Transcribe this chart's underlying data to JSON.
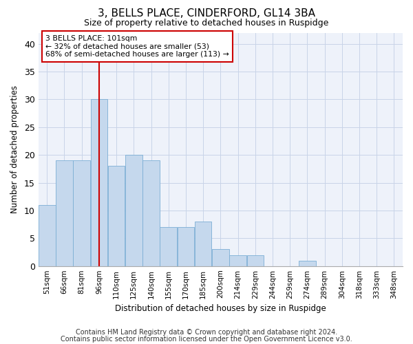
{
  "title": "3, BELLS PLACE, CINDERFORD, GL14 3BA",
  "subtitle": "Size of property relative to detached houses in Ruspidge",
  "xlabel": "Distribution of detached houses by size in Ruspidge",
  "ylabel": "Number of detached properties",
  "bar_labels": [
    "51sqm",
    "66sqm",
    "81sqm",
    "96sqm",
    "110sqm",
    "125sqm",
    "140sqm",
    "155sqm",
    "170sqm",
    "185sqm",
    "200sqm",
    "214sqm",
    "229sqm",
    "244sqm",
    "259sqm",
    "274sqm",
    "289sqm",
    "304sqm",
    "318sqm",
    "333sqm",
    "348sqm"
  ],
  "bar_values": [
    11,
    19,
    19,
    30,
    18,
    20,
    19,
    7,
    7,
    8,
    3,
    2,
    2,
    0,
    0,
    1,
    0,
    0,
    0,
    0,
    0
  ],
  "bar_color": "#c5d8ed",
  "bar_edge_color": "#7baed4",
  "vline_color": "#cc0000",
  "annotation_box_text": "3 BELLS PLACE: 101sqm\n← 32% of detached houses are smaller (53)\n68% of semi-detached houses are larger (113) →",
  "annotation_box_color": "#cc0000",
  "ylim": [
    0,
    42
  ],
  "yticks": [
    0,
    5,
    10,
    15,
    20,
    25,
    30,
    35,
    40
  ],
  "grid_color": "#c8d4e8",
  "background_color": "#eef2fa",
  "title_fontsize": 11,
  "subtitle_fontsize": 9,
  "footer1": "Contains HM Land Registry data © Crown copyright and database right 2024.",
  "footer2": "Contains public sector information licensed under the Open Government Licence v3.0.",
  "footer_fontsize": 7
}
